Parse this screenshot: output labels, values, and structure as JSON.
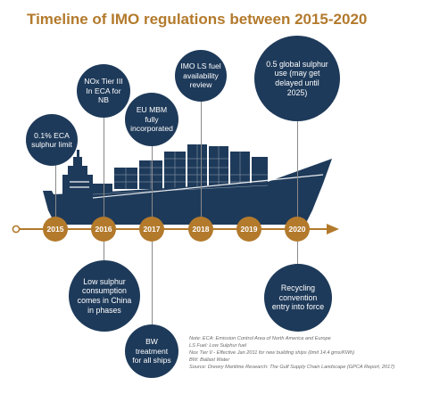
{
  "title": "Timeline of IMO regulations between 2015-2020",
  "colors": {
    "navy": "#1e3a5a",
    "gold": "#b37a2c"
  },
  "timeline": {
    "years": [
      "2015",
      "2016",
      "2017",
      "2018",
      "2019",
      "2020"
    ]
  },
  "events_above": [
    {
      "text": "0.1% ECA sulphur limit"
    },
    {
      "text": "NOx Tier III In ECA for NB"
    },
    {
      "text": "EU MBM fully incorporated"
    },
    {
      "text": "IMO LS fuel availability review"
    },
    {
      "text": "0.5 global sulphur use (may get delayed until 2025)"
    }
  ],
  "events_below": [
    {
      "text": "Low sulphur consumption comes in China in phases"
    },
    {
      "text": "BW treatment for all ships"
    },
    {
      "text": "Recycling convention entry into force"
    }
  ],
  "notes": [
    "Note: ECA: Emission Control Area of North America and Europe",
    "LS Fuel: Low Sulphur fuel",
    "Nox Tier II - Effective Jan 2011 for new building ships (limit 14.4 gms/KWh)",
    "BW: Ballast Water",
    "Source: Drewry Maritime Research: The Gulf Supply Chain Landscape (GPCA Report, 2017)"
  ]
}
